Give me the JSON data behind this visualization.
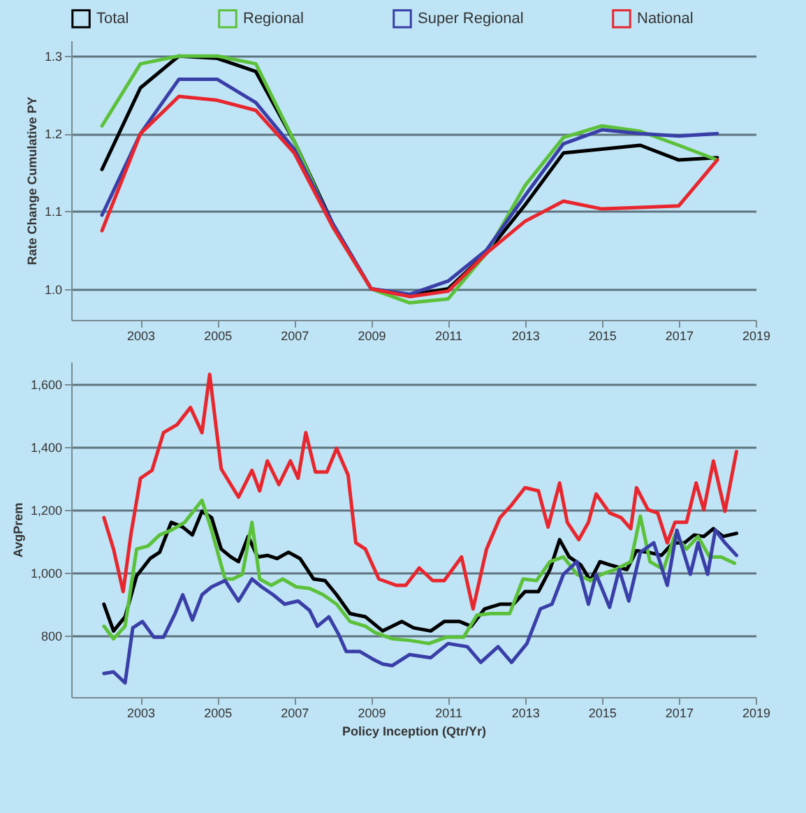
{
  "chart_data": [
    {
      "type": "line",
      "ylabel": "Rate Change Cumulative PY",
      "legend": "top",
      "grid": "y",
      "line_style": "solid",
      "x": [
        2002,
        2003,
        2004,
        2005,
        2006,
        2007,
        2008,
        2009,
        2010,
        2011,
        2012,
        2013,
        2014,
        2015,
        2016,
        2017,
        2018
      ],
      "xlim": [
        2001.2,
        2019.0
      ],
      "xticks": [
        2003,
        2005,
        2007,
        2009,
        2011,
        2013,
        2015,
        2017,
        2019
      ],
      "ylim": [
        0.96,
        1.32
      ],
      "yticks": [
        {
          "value": 1.0,
          "label": "1.0"
        },
        {
          "value": 1.1,
          "label": "1.1"
        },
        {
          "value": 1.2,
          "label": "1.2"
        },
        {
          "value": 1.3,
          "label": "1.3"
        }
      ],
      "series": [
        {
          "name": "Total",
          "color": "#000000",
          "values": [
            1.154,
            1.259,
            1.3,
            1.297,
            1.28,
            1.19,
            1.084,
            1.0,
            0.992,
            1.0,
            1.046,
            1.108,
            1.175,
            1.18,
            1.185,
            1.166,
            1.169
          ]
        },
        {
          "name": "Regional",
          "color": "#5cc13a",
          "values": [
            1.21,
            1.29,
            1.3,
            1.3,
            1.29,
            1.19,
            1.08,
            1.0,
            0.982,
            0.987,
            1.046,
            1.133,
            1.195,
            1.21,
            1.203,
            1.185,
            1.166
          ]
        },
        {
          "name": "Super Regional",
          "color": "#3a3fa8",
          "values": [
            1.095,
            1.2,
            1.27,
            1.27,
            1.24,
            1.18,
            1.084,
            1.0,
            0.993,
            1.01,
            1.05,
            1.12,
            1.187,
            1.205,
            1.2,
            1.197,
            1.2
          ]
        },
        {
          "name": "National",
          "color": "#e8262e",
          "values": [
            1.075,
            1.2,
            1.248,
            1.243,
            1.23,
            1.175,
            1.08,
            1.0,
            0.99,
            0.997,
            1.046,
            1.087,
            1.113,
            1.103,
            1.105,
            1.107,
            1.166
          ]
        }
      ]
    },
    {
      "type": "line",
      "ylabel": "AvgPrem",
      "xlabel": "Policy Inception (Qtr/Yr)",
      "grid": "y",
      "line_style": "solid",
      "xlim": [
        2001.2,
        2019.0
      ],
      "xticks": [
        2003,
        2005,
        2007,
        2009,
        2011,
        2013,
        2015,
        2017,
        2019
      ],
      "ylim": [
        605,
        1670
      ],
      "yticks": [
        {
          "value": 800,
          "label": "800"
        },
        {
          "value": 1000,
          "label": "1,000"
        },
        {
          "value": 1200,
          "label": "1,200"
        },
        {
          "value": 1400,
          "label": "1,400"
        },
        {
          "value": 1600,
          "label": "1,600"
        }
      ],
      "series": [
        {
          "color": "#000000",
          "x": [
            2002.05,
            2002.3,
            2002.6,
            2002.9,
            2003.25,
            2003.5,
            2003.8,
            2004.1,
            2004.35,
            2004.6,
            2004.85,
            2005.1,
            2005.35,
            2005.55,
            2005.8,
            2006.05,
            2006.3,
            2006.55,
            2006.85,
            2007.15,
            2007.5,
            2007.8,
            2008.1,
            2008.45,
            2008.85,
            2009.3,
            2009.8,
            2010.1,
            2010.55,
            2010.9,
            2011.3,
            2011.6,
            2011.95,
            2012.35,
            2012.7,
            2013.0,
            2013.35,
            2013.65,
            2013.9,
            2014.15,
            2014.45,
            2014.7,
            2014.95,
            2015.2,
            2015.65,
            2015.9,
            2016.2,
            2016.55,
            2016.85,
            2017.15,
            2017.4,
            2017.65,
            2017.9,
            2018.15,
            2018.5
          ],
          "values": [
            900,
            815,
            860,
            990,
            1045,
            1065,
            1160,
            1145,
            1120,
            1195,
            1175,
            1075,
            1050,
            1035,
            1115,
            1050,
            1055,
            1045,
            1065,
            1045,
            980,
            975,
            930,
            870,
            860,
            815,
            845,
            825,
            815,
            845,
            845,
            830,
            885,
            900,
            900,
            940,
            940,
            1010,
            1105,
            1050,
            1025,
            975,
            1035,
            1025,
            1010,
            1070,
            1065,
            1055,
            1095,
            1095,
            1120,
            1115,
            1140,
            1115,
            1125
          ]
        },
        {
          "color": "#5cc13a",
          "x": [
            2002.05,
            2002.3,
            2002.6,
            2002.9,
            2003.2,
            2003.5,
            2003.8,
            2004.15,
            2004.6,
            2004.85,
            2005.2,
            2005.4,
            2005.65,
            2005.9,
            2006.1,
            2006.4,
            2006.7,
            2007.05,
            2007.4,
            2007.75,
            2008.1,
            2008.45,
            2008.85,
            2009.1,
            2009.55,
            2010.0,
            2010.5,
            2010.95,
            2011.4,
            2011.75,
            2012.1,
            2012.6,
            2012.95,
            2013.3,
            2013.65,
            2014.0,
            2014.35,
            2014.7,
            2015.0,
            2015.35,
            2015.75,
            2016.0,
            2016.25,
            2016.6,
            2016.9,
            2017.2,
            2017.5,
            2017.8,
            2018.1,
            2018.45
          ],
          "values": [
            830,
            790,
            830,
            1075,
            1085,
            1120,
            1135,
            1160,
            1230,
            1135,
            980,
            980,
            995,
            1160,
            980,
            960,
            980,
            955,
            950,
            930,
            900,
            845,
            830,
            810,
            790,
            785,
            775,
            795,
            795,
            865,
            870,
            870,
            980,
            975,
            1035,
            1050,
            995,
            975,
            995,
            1010,
            1035,
            1180,
            1035,
            1010,
            1120,
            1075,
            1115,
            1050,
            1050,
            1030
          ]
        },
        {
          "color": "#3a3fa8",
          "x": [
            2002.05,
            2002.3,
            2002.6,
            2002.8,
            2003.05,
            2003.35,
            2003.6,
            2003.9,
            2004.1,
            2004.35,
            2004.6,
            2004.85,
            2005.2,
            2005.55,
            2005.9,
            2006.15,
            2006.45,
            2006.75,
            2007.1,
            2007.4,
            2007.6,
            2007.9,
            2008.15,
            2008.35,
            2008.7,
            2009.05,
            2009.3,
            2009.55,
            2010.0,
            2010.55,
            2011.0,
            2011.5,
            2011.85,
            2012.3,
            2012.65,
            2013.05,
            2013.4,
            2013.7,
            2014.0,
            2014.35,
            2014.65,
            2014.85,
            2015.2,
            2015.45,
            2015.7,
            2016.0,
            2016.35,
            2016.7,
            2016.95,
            2017.3,
            2017.5,
            2017.75,
            2017.95,
            2018.2,
            2018.5
          ],
          "values": [
            680,
            685,
            650,
            825,
            845,
            795,
            795,
            870,
            930,
            850,
            930,
            955,
            975,
            910,
            980,
            955,
            930,
            900,
            910,
            880,
            830,
            860,
            805,
            750,
            750,
            725,
            710,
            705,
            740,
            730,
            775,
            765,
            715,
            765,
            715,
            775,
            885,
            900,
            995,
            1035,
            900,
            995,
            890,
            1010,
            910,
            1065,
            1095,
            960,
            1135,
            995,
            1095,
            995,
            1135,
            1095,
            1055
          ]
        },
        {
          "color": "#e8262e",
          "x": [
            2002.05,
            2002.3,
            2002.55,
            2002.75,
            2003.0,
            2003.3,
            2003.6,
            2003.95,
            2004.3,
            2004.6,
            2004.8,
            2005.1,
            2005.55,
            2005.9,
            2006.1,
            2006.3,
            2006.6,
            2006.9,
            2007.1,
            2007.3,
            2007.55,
            2007.85,
            2008.1,
            2008.4,
            2008.6,
            2008.85,
            2009.2,
            2009.65,
            2009.9,
            2010.25,
            2010.6,
            2010.9,
            2011.35,
            2011.65,
            2012.0,
            2012.35,
            2012.65,
            2013.0,
            2013.35,
            2013.6,
            2013.9,
            2014.1,
            2014.4,
            2014.65,
            2014.85,
            2015.2,
            2015.5,
            2015.75,
            2015.9,
            2016.2,
            2016.45,
            2016.7,
            2016.9,
            2017.2,
            2017.45,
            2017.65,
            2017.9,
            2018.2,
            2018.5
          ],
          "values": [
            1175,
            1075,
            940,
            1120,
            1300,
            1325,
            1445,
            1470,
            1525,
            1445,
            1630,
            1330,
            1240,
            1325,
            1260,
            1355,
            1280,
            1355,
            1300,
            1445,
            1320,
            1320,
            1395,
            1310,
            1095,
            1075,
            980,
            960,
            960,
            1015,
            975,
            975,
            1050,
            885,
            1075,
            1175,
            1215,
            1270,
            1260,
            1145,
            1285,
            1160,
            1105,
            1160,
            1250,
            1190,
            1175,
            1140,
            1270,
            1200,
            1190,
            1095,
            1160,
            1160,
            1285,
            1200,
            1355,
            1195,
            1385
          ]
        }
      ]
    }
  ]
}
